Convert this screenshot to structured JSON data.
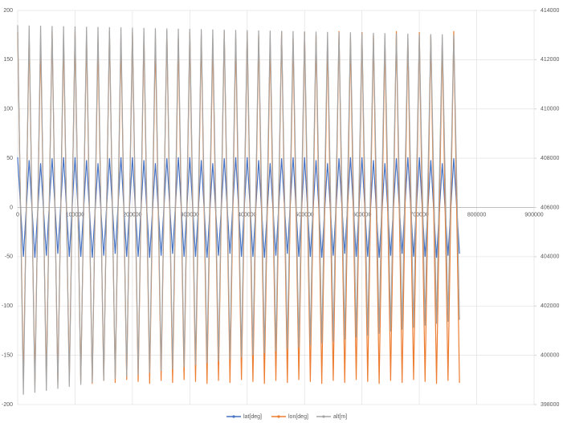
{
  "chart_data": {
    "type": "line",
    "x": [
      0,
      10000,
      20000,
      30000,
      40000,
      50000,
      60000,
      70000,
      80000,
      90000,
      100000,
      110000,
      120000,
      130000,
      140000,
      150000,
      160000,
      170000,
      180000,
      190000,
      200000,
      210000,
      220000,
      230000,
      240000,
      250000,
      260000,
      270000,
      280000,
      290000,
      300000,
      310000,
      320000,
      330000,
      340000,
      350000,
      360000,
      370000,
      380000,
      390000,
      400000,
      410000,
      420000,
      430000,
      440000,
      450000,
      460000,
      470000,
      480000,
      490000,
      500000,
      510000,
      520000,
      530000,
      540000,
      550000,
      560000,
      570000,
      580000,
      590000,
      600000,
      610000,
      620000,
      630000,
      640000,
      650000,
      660000,
      670000,
      680000,
      690000,
      700000,
      710000,
      720000,
      730000,
      740000,
      750000,
      760000,
      770000
    ],
    "series": [
      {
        "name": "lat[deg]",
        "color": "#4472c4",
        "values": [
          51,
          -50,
          48,
          -51,
          45,
          -49,
          50,
          -47,
          51,
          -50,
          51,
          -50,
          48,
          -51,
          45,
          -49,
          50,
          -47,
          51,
          -50,
          51,
          -50,
          48,
          -51,
          45,
          -49,
          50,
          -47,
          51,
          -50,
          51,
          -50,
          48,
          -51,
          45,
          -49,
          50,
          -47,
          51,
          -50,
          51,
          -50,
          48,
          -51,
          45,
          -49,
          50,
          -47,
          51,
          -50,
          51,
          -50,
          48,
          -51,
          45,
          -49,
          50,
          -47,
          51,
          -50,
          51,
          -50,
          48,
          -51,
          45,
          -49,
          50,
          -47,
          51,
          -50,
          51,
          -50,
          48,
          -51,
          45,
          -49,
          50,
          -47
        ]
      },
      {
        "name": "lon[deg]",
        "color": "#ed7d31",
        "values": [
          178,
          -177,
          175,
          -179,
          170,
          -176,
          179,
          -178,
          172,
          -175,
          178,
          -177,
          175,
          -179,
          170,
          -176,
          179,
          -178,
          172,
          -175,
          178,
          -177,
          175,
          -179,
          170,
          -176,
          179,
          -178,
          172,
          -175,
          178,
          -177,
          175,
          -179,
          170,
          -176,
          179,
          -178,
          172,
          -175,
          178,
          -177,
          175,
          -179,
          170,
          -176,
          179,
          -178,
          172,
          -175,
          178,
          -177,
          175,
          -179,
          170,
          -176,
          179,
          -178,
          172,
          -175,
          178,
          -177,
          175,
          -179,
          170,
          -176,
          179,
          -178,
          172,
          -175,
          178,
          -177,
          175,
          -179,
          170,
          -176,
          179,
          -178
        ]
      },
      {
        "name": "alt[m]",
        "color": "#a5a5a5",
        "axis": "y2",
        "values": [
          413400,
          398400,
          413390,
          398480,
          413380,
          398560,
          413370,
          398640,
          413360,
          398720,
          413350,
          398800,
          413340,
          398880,
          413330,
          398960,
          413320,
          399040,
          413310,
          399120,
          413300,
          399200,
          413290,
          399280,
          413280,
          399360,
          413270,
          399440,
          413260,
          399520,
          413250,
          399600,
          413240,
          399680,
          413230,
          399760,
          413220,
          399840,
          413210,
          399920,
          413200,
          400000,
          413190,
          400080,
          413180,
          400160,
          413170,
          400240,
          413160,
          400320,
          413150,
          400400,
          413140,
          400480,
          413130,
          400560,
          413120,
          400640,
          413110,
          400720,
          413100,
          400800,
          413090,
          400880,
          413080,
          400960,
          413070,
          401040,
          413060,
          401120,
          413050,
          401200,
          413040,
          401280,
          413030,
          401360,
          413020,
          401440
        ]
      }
    ],
    "xlim": [
      0,
      900000
    ],
    "xticks": [
      0,
      100000,
      200000,
      300000,
      400000,
      500000,
      600000,
      700000,
      800000,
      900000
    ],
    "ylim": [
      -200,
      200
    ],
    "yticks": [
      -200,
      -150,
      -100,
      -50,
      0,
      50,
      100,
      150,
      200
    ],
    "y2lim": [
      398000,
      414000
    ],
    "y2ticks": [
      398000,
      400000,
      402000,
      404000,
      406000,
      408000,
      410000,
      412000,
      414000
    ],
    "grid": true,
    "legend": "bottom"
  }
}
